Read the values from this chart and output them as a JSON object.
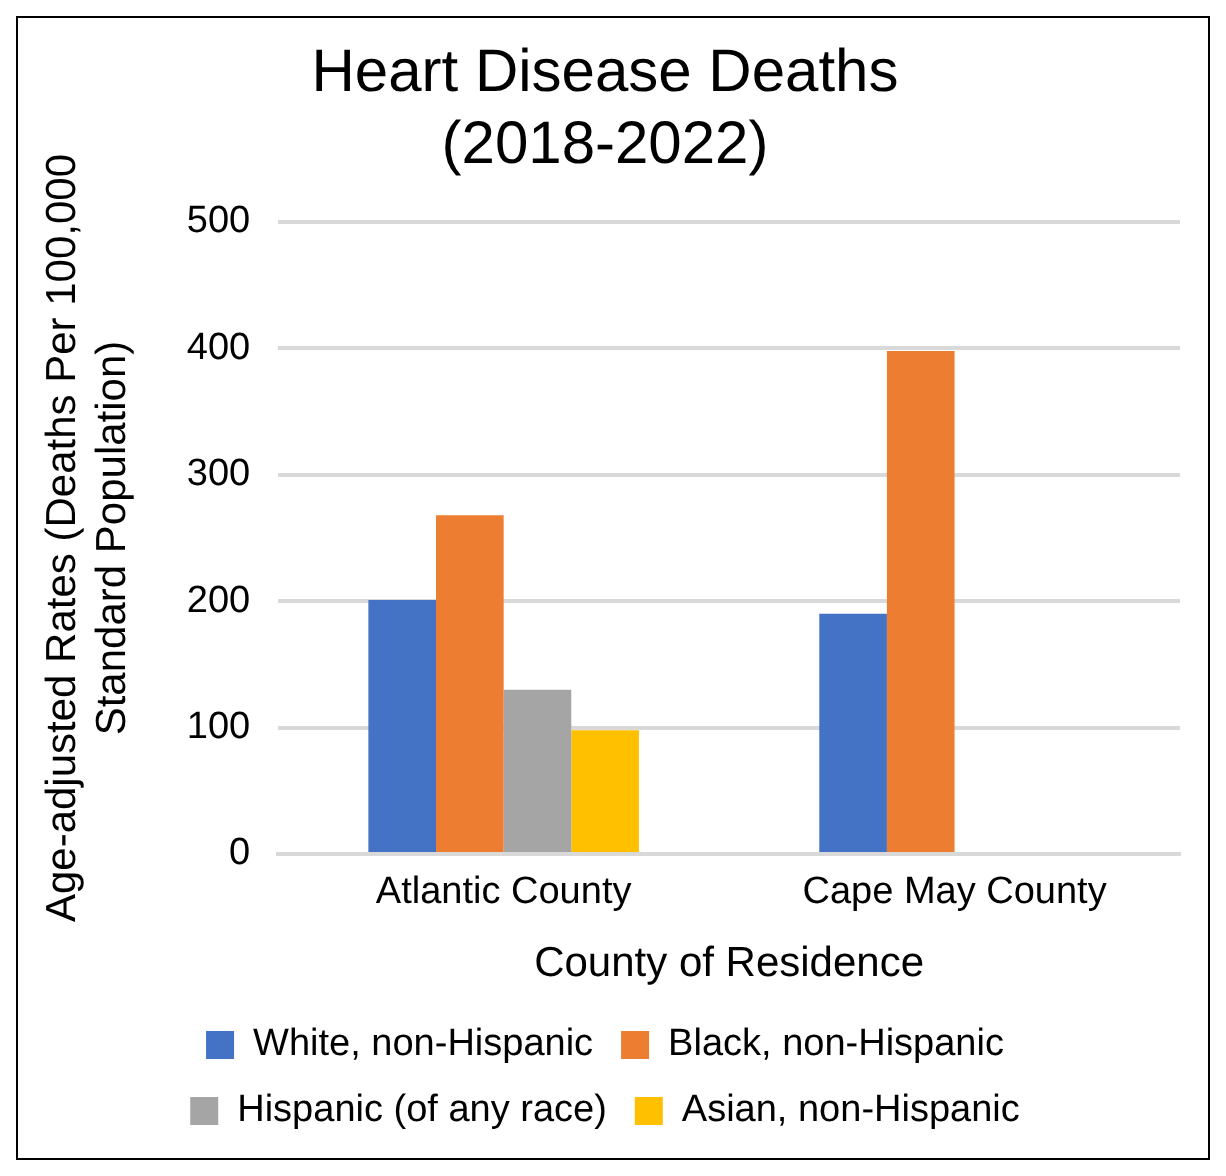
{
  "chart_data": {
    "type": "bar",
    "title": [
      "Heart Disease Deaths",
      "(2018-2022)"
    ],
    "xlabel": "County of Residence",
    "ylabel": [
      "Age-adjusted Rates (Deaths Per 100,000",
      "Standard Population)"
    ],
    "categories": [
      "Atlantic County",
      "Cape May County"
    ],
    "series": [
      {
        "name": "White, non-Hispanic",
        "color": "#4472c4",
        "values": [
          201,
          190
        ]
      },
      {
        "name": "Black, non-Hispanic",
        "color": "#ed7d31",
        "values": [
          268,
          398
        ]
      },
      {
        "name": "Hispanic (of any race)",
        "color": "#a5a5a5",
        "values": [
          130,
          null
        ]
      },
      {
        "name": "Asian, non-Hispanic",
        "color": "#ffc000",
        "values": [
          98,
          null
        ]
      }
    ],
    "ylim": [
      0,
      500
    ],
    "yticks": [
      0,
      100,
      200,
      300,
      400,
      500
    ],
    "grid": "y",
    "legend": "bottom"
  }
}
